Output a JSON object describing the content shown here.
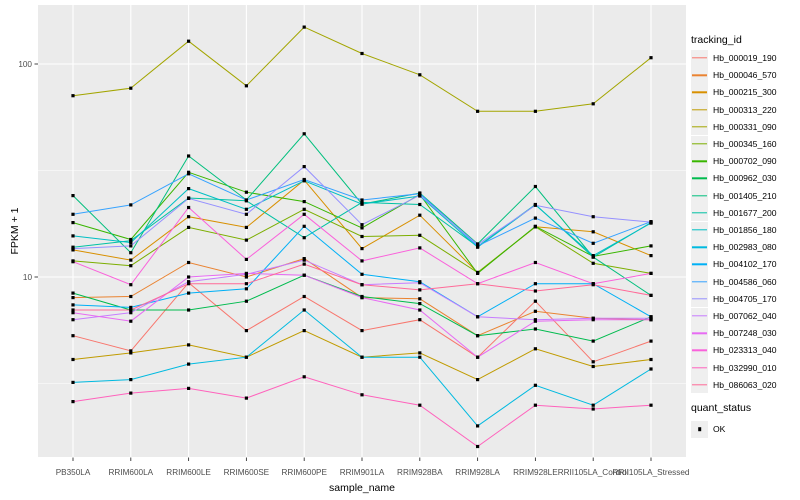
{
  "legend": {
    "tracking_title": "tracking_id",
    "quant_title": "quant_status",
    "quant_value": "OK",
    "quant_marker": "black-square"
  },
  "panel": {
    "background_color": "#EBEBEB",
    "gridline_color": "#FFFFFF",
    "tick_color": "#333333",
    "tick_label_color": "#4D4D4D",
    "point_color": "#000000"
  },
  "chart_data": {
    "type": "line",
    "title": "",
    "xlabel": "sample_name",
    "ylabel": "FPKM + 1",
    "y_scale": "log10",
    "y_tick_labels": [
      "100",
      "10"
    ],
    "y_ticks": [
      100,
      10
    ],
    "y_minor_gridlines": [
      31.623,
      3.1623
    ],
    "ylim": [
      1.45,
      190
    ],
    "legend_position": "right",
    "marker": "small-black-square",
    "categories": [
      "PB350LA",
      "RRIM600LA",
      "RRIM600LE",
      "RRIM600SE",
      "RRIM600PE",
      "RRIM901LA",
      "RRIM928BA",
      "RRIM928LA",
      "RRIM928LE",
      "RRII105LA_Control",
      "RRII105LA_Stressed"
    ],
    "series": [
      {
        "name": "Hb_000019_190",
        "color": "#F8766D",
        "values": [
          5.3,
          4.5,
          9.4,
          5.6,
          8.1,
          5.6,
          6.3,
          4.2,
          7.7,
          4.0,
          5.0
        ]
      },
      {
        "name": "Hb_000046_570",
        "color": "#EA8331",
        "values": [
          8.0,
          8.1,
          11.7,
          10.0,
          12.2,
          8.0,
          7.9,
          5.3,
          6.9,
          6.4,
          6.3
        ]
      },
      {
        "name": "Hb_000215_300",
        "color": "#D89000",
        "values": [
          13.4,
          12.0,
          19.2,
          17.1,
          28.5,
          13.6,
          19.5,
          10.5,
          17.2,
          16.3,
          12.6
        ]
      },
      {
        "name": "Hb_000313_220",
        "color": "#C09B00",
        "values": [
          4.1,
          4.4,
          4.8,
          4.2,
          5.6,
          4.2,
          4.4,
          3.3,
          4.6,
          3.8,
          4.1
        ]
      },
      {
        "name": "Hb_000331_090",
        "color": "#A3A500",
        "values": [
          71,
          77,
          128,
          79,
          149,
          112,
          89,
          60,
          60,
          65,
          107
        ]
      },
      {
        "name": "Hb_000345_160",
        "color": "#7CAE00",
        "values": [
          11.9,
          11.3,
          17.1,
          14.9,
          20.8,
          15.5,
          15.7,
          10.5,
          17.2,
          11.6,
          10.4
        ]
      },
      {
        "name": "Hb_000702_090",
        "color": "#39B600",
        "values": [
          18.0,
          15.0,
          31.0,
          25.0,
          22.6,
          17.0,
          24.4,
          10.4,
          17.3,
          12.5,
          14.0
        ]
      },
      {
        "name": "Hb_000962_030",
        "color": "#00BB4E",
        "values": [
          8.4,
          7.0,
          7.0,
          7.7,
          10.2,
          8.1,
          7.5,
          5.3,
          5.7,
          5.0,
          6.5
        ]
      },
      {
        "name": "Hb_001405_210",
        "color": "#00BF7D",
        "values": [
          24.1,
          13.0,
          37.0,
          23.0,
          47.0,
          22.0,
          24.8,
          14.3,
          26.6,
          12.4,
          8.2
        ]
      },
      {
        "name": "Hb_001677_200",
        "color": "#00C1A3",
        "values": [
          13.8,
          14.8,
          23.5,
          22.8,
          15.3,
          22.4,
          21.9,
          13.9,
          21.9,
          12.4,
          18.0
        ]
      },
      {
        "name": "Hb_001856_180",
        "color": "#00BFC4",
        "values": [
          15.6,
          14.5,
          26.0,
          20.8,
          28.3,
          22.0,
          24.0,
          13.8,
          21.8,
          12.6,
          17.9
        ]
      },
      {
        "name": "Hb_002983_080",
        "color": "#00BAE0",
        "values": [
          3.2,
          3.3,
          3.9,
          4.2,
          7.0,
          4.2,
          4.2,
          2.0,
          3.1,
          2.5,
          3.7
        ]
      },
      {
        "name": "Hb_004102_170",
        "color": "#00B0F6",
        "values": [
          7.4,
          7.2,
          8.4,
          8.8,
          17.3,
          10.3,
          9.5,
          6.5,
          9.3,
          9.3,
          6.5
        ]
      },
      {
        "name": "Hb_004586_060",
        "color": "#35A2FF",
        "values": [
          19.7,
          21.8,
          30.5,
          23.0,
          28.7,
          23.0,
          24.6,
          14.0,
          18.9,
          14.4,
          18.2
        ]
      },
      {
        "name": "Hb_004705_170",
        "color": "#9590FF",
        "values": [
          13.6,
          14.0,
          23.4,
          19.7,
          33.0,
          17.6,
          24.2,
          14.2,
          21.7,
          19.2,
          18.1
        ]
      },
      {
        "name": "Hb_007062_040",
        "color": "#C77CFF",
        "values": [
          6.3,
          6.8,
          9.5,
          10.3,
          12.0,
          9.2,
          9.4,
          6.5,
          6.3,
          6.4,
          6.4
        ]
      },
      {
        "name": "Hb_007248_030",
        "color": "#E76BF3",
        "values": [
          6.8,
          6.2,
          10.0,
          10.4,
          10.2,
          8.0,
          7.0,
          4.2,
          6.2,
          6.3,
          6.3
        ]
      },
      {
        "name": "Hb_023313_040",
        "color": "#FA62DB",
        "values": [
          11.8,
          9.2,
          21.2,
          12.1,
          19.7,
          11.9,
          13.7,
          9.3,
          11.7,
          9.3,
          10.4
        ]
      },
      {
        "name": "Hb_032990_010",
        "color": "#FF62BC",
        "values": [
          2.6,
          2.85,
          3.0,
          2.7,
          3.4,
          2.8,
          2.5,
          1.6,
          2.5,
          2.4,
          2.5
        ]
      },
      {
        "name": "Hb_086063_020",
        "color": "#FF6A98",
        "values": [
          7.0,
          7.0,
          9.3,
          9.3,
          11.5,
          9.2,
          8.7,
          9.3,
          8.6,
          9.2,
          8.2
        ]
      }
    ]
  }
}
